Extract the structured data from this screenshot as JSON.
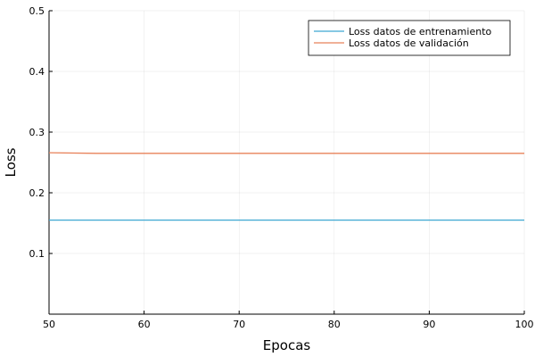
{
  "chart_data": {
    "type": "line",
    "title": "",
    "xlabel": "Epocas",
    "ylabel": "Loss",
    "xlim": [
      50,
      100
    ],
    "ylim": [
      0,
      0.5
    ],
    "xticks": [
      50,
      60,
      70,
      80,
      90,
      100
    ],
    "yticks": [
      0.1,
      0.2,
      0.3,
      0.4,
      0.5
    ],
    "xtick_labels": [
      "50",
      "60",
      "70",
      "80",
      "90",
      "100"
    ],
    "ytick_labels": [
      "0.1",
      "0.2",
      "0.3",
      "0.4",
      "0.5"
    ],
    "grid": true,
    "legend_position": "top-right",
    "series": [
      {
        "name": "Loss datos de entrenamiento",
        "color": "#3ea8d2",
        "x": [
          50,
          60,
          70,
          80,
          90,
          100
        ],
        "y": [
          0.155,
          0.155,
          0.155,
          0.155,
          0.155,
          0.155
        ]
      },
      {
        "name": "Loss datos de validación",
        "color": "#e8825a",
        "x": [
          50,
          55,
          60,
          70,
          80,
          90,
          100
        ],
        "y": [
          0.266,
          0.265,
          0.265,
          0.265,
          0.265,
          0.265,
          0.265
        ]
      }
    ]
  }
}
